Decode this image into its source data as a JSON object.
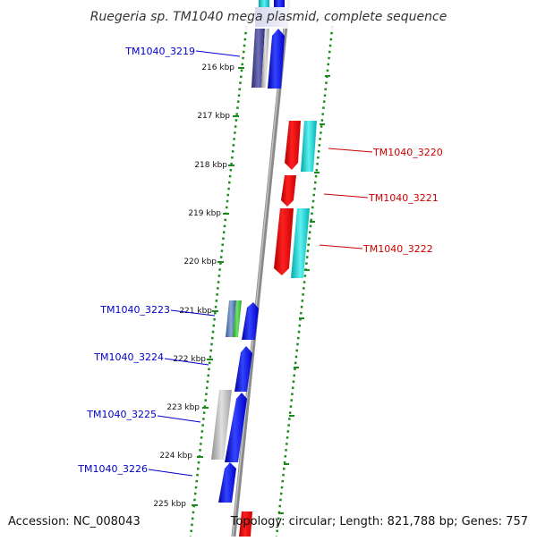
{
  "title": "Ruegeria sp. TM1040 mega plasmid, complete sequence",
  "accession": "Accession: NC_008043",
  "topology": "Topology: circular; Length: 821,788 bp; Genes: 757",
  "ticks": [
    "216 kbp",
    "217 kbp",
    "218 kbp",
    "219 kbp",
    "220 kbp",
    "221 kbp",
    "222 kbp",
    "223 kbp",
    "224 kbp",
    "225 kbp"
  ],
  "genes": [
    {
      "label": "TM1040_3219",
      "color": "#0000cc"
    },
    {
      "label": "TM1040_3220",
      "color": "#cc0000"
    },
    {
      "label": "TM1040_3221",
      "color": "#cc0000"
    },
    {
      "label": "TM1040_3222",
      "color": "#cc0000"
    },
    {
      "label": "TM1040_3223",
      "color": "#0000cc"
    },
    {
      "label": "TM1040_3224",
      "color": "#0000cc"
    },
    {
      "label": "TM1040_3225",
      "color": "#0000cc"
    },
    {
      "label": "TM1040_3226",
      "color": "#0000cc"
    }
  ]
}
